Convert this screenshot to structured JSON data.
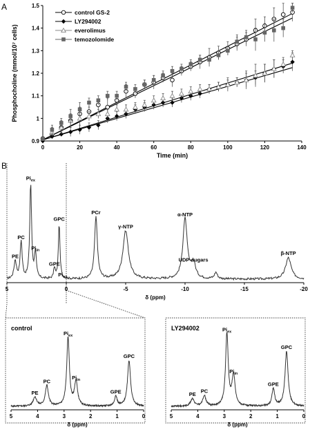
{
  "chart_data": [
    {
      "panel": "A",
      "type": "scatter",
      "xlabel": "Time (min)",
      "ylabel": "Phosphocholine (mmol/10⁷ cells)",
      "xlim": [
        0,
        140
      ],
      "ylim": [
        0.9,
        1.5
      ],
      "xticks": [
        0,
        20,
        40,
        60,
        80,
        100,
        120,
        140
      ],
      "yticks": [
        0.9,
        1.0,
        1.1,
        1.2,
        1.3,
        1.4,
        1.5
      ],
      "legend": "top-left",
      "series": [
        {
          "name": "control GS-2",
          "marker": "open-circle",
          "color": "#000000",
          "x": [
            0,
            5,
            10,
            15,
            20,
            25,
            30,
            35,
            40,
            45,
            50,
            55,
            60,
            65,
            70,
            75,
            80,
            85,
            90,
            95,
            100,
            105,
            110,
            115,
            120,
            125,
            130,
            135
          ],
          "y": [
            0.91,
            0.93,
            0.96,
            0.99,
            1.02,
            1.03,
            1.06,
            1.05,
            1.08,
            1.12,
            1.11,
            1.15,
            1.16,
            1.18,
            1.17,
            1.21,
            1.23,
            1.25,
            1.27,
            1.29,
            1.31,
            1.33,
            1.35,
            1.39,
            1.41,
            1.44,
            1.46,
            1.47
          ],
          "err": [
            0.01,
            0.02,
            0.01,
            0.03,
            0.03,
            0.02,
            0.02,
            0.04,
            0.02,
            0.03,
            0.02,
            0.02,
            0.03,
            0.02,
            0.03,
            0.02,
            0.02,
            0.03,
            0.04,
            0.03,
            0.03,
            0.03,
            0.03,
            0.05,
            0.04,
            0.05,
            0.05,
            0.04
          ]
        },
        {
          "name": "LY294002",
          "marker": "filled-diamond",
          "color": "#000000",
          "x": [
            0,
            5,
            10,
            15,
            20,
            25,
            30,
            35,
            40,
            45,
            50,
            55,
            60,
            65,
            70,
            75,
            80,
            85,
            90,
            95,
            100,
            105,
            110,
            115,
            120,
            125,
            130,
            135
          ],
          "y": [
            0.9,
            0.92,
            0.93,
            0.94,
            0.95,
            0.96,
            0.97,
            1.0,
            1.01,
            1.02,
            1.04,
            1.05,
            1.06,
            1.07,
            1.07,
            1.09,
            1.1,
            1.11,
            1.13,
            1.14,
            1.15,
            1.16,
            1.17,
            1.18,
            1.2,
            1.22,
            1.23,
            1.25
          ],
          "err": [
            0.01,
            0.01,
            0.01,
            0.02,
            0.02,
            0.02,
            0.02,
            0.02,
            0.02,
            0.02,
            0.02,
            0.02,
            0.02,
            0.02,
            0.02,
            0.02,
            0.02,
            0.02,
            0.02,
            0.02,
            0.03,
            0.02,
            0.03,
            0.03,
            0.04,
            0.04,
            0.03,
            0.04
          ]
        },
        {
          "name": "everolimus",
          "marker": "open-triangle",
          "color": "#888888",
          "x": [
            0,
            5,
            10,
            15,
            20,
            25,
            30,
            35,
            40,
            45,
            50,
            55,
            60,
            65,
            70,
            75,
            80,
            85,
            90,
            95,
            100,
            105,
            110,
            115,
            120,
            125,
            130,
            135
          ],
          "y": [
            0.91,
            0.94,
            0.96,
            0.99,
            1.0,
            1.01,
            1.02,
            1.02,
            1.04,
            1.04,
            1.05,
            1.06,
            1.08,
            1.09,
            1.1,
            1.11,
            1.12,
            1.13,
            1.13,
            1.14,
            1.15,
            1.16,
            1.17,
            1.19,
            1.2,
            1.22,
            1.24,
            1.28
          ],
          "err": [
            0.01,
            0.02,
            0.03,
            0.03,
            0.04,
            0.02,
            0.02,
            0.02,
            0.02,
            0.02,
            0.02,
            0.02,
            0.02,
            0.02,
            0.02,
            0.02,
            0.02,
            0.02,
            0.02,
            0.02,
            0.02,
            0.02,
            0.04,
            0.05,
            0.04,
            0.04,
            0.03,
            0.02
          ]
        },
        {
          "name": "temozolomide",
          "marker": "filled-square",
          "color": "#666666",
          "x": [
            0,
            5,
            10,
            15,
            20,
            25,
            30,
            35,
            40,
            45,
            50,
            55,
            60,
            65,
            70,
            75,
            80,
            85,
            90,
            95,
            100,
            105,
            110,
            115,
            120,
            125,
            130,
            135
          ],
          "y": [
            0.91,
            0.95,
            0.98,
            1.01,
            1.04,
            1.07,
            1.08,
            1.1,
            1.1,
            1.14,
            1.13,
            1.15,
            1.17,
            1.19,
            1.21,
            1.22,
            1.24,
            1.26,
            1.26,
            1.28,
            1.3,
            1.34,
            1.36,
            1.35,
            1.38,
            1.39,
            1.4,
            1.49
          ],
          "err": [
            0.01,
            0.02,
            0.02,
            0.03,
            0.03,
            0.02,
            0.02,
            0.02,
            0.02,
            0.02,
            0.02,
            0.02,
            0.02,
            0.02,
            0.02,
            0.02,
            0.02,
            0.02,
            0.02,
            0.02,
            0.02,
            0.03,
            0.03,
            0.05,
            0.04,
            0.05,
            0.04,
            0.02
          ]
        }
      ],
      "fits": [
        {
          "x": [
            0,
            135
          ],
          "y": [
            0.905,
            1.465
          ]
        },
        {
          "x": [
            0,
            135
          ],
          "y": [
            0.905,
            1.225
          ]
        },
        {
          "x": [
            0,
            135
          ],
          "y": [
            0.905,
            1.245
          ]
        },
        {
          "x": [
            0,
            135
          ],
          "y": [
            0.905,
            1.445
          ]
        }
      ]
    },
    {
      "panel": "B",
      "type": "line",
      "xlabel": "δ (ppm)",
      "xlim": [
        5,
        -20
      ],
      "xticks": [
        5,
        0,
        -5,
        -10,
        -15,
        -20
      ],
      "peaks": [
        {
          "label": "PE",
          "sub": "",
          "ppm": 4.3,
          "height": 0.17,
          "width": 0.12
        },
        {
          "label": "PC",
          "sub": "",
          "ppm": 3.8,
          "height": 0.35,
          "width": 0.1
        },
        {
          "label": "Pi",
          "sub": "ex",
          "ppm": 3.0,
          "height": 0.9,
          "width": 0.09
        },
        {
          "label": "Pi",
          "sub": "in",
          "ppm": 2.6,
          "height": 0.25,
          "width": 0.09
        },
        {
          "label": "GPE",
          "sub": "",
          "ppm": 1.0,
          "height": 0.1,
          "width": 0.08
        },
        {
          "label": "GPC",
          "sub": "",
          "ppm": 0.6,
          "height": 0.52,
          "width": 0.08
        },
        {
          "label": "Pi",
          "sub": "ex",
          "ppm": 0.3,
          "height": 0.0,
          "width": 0.08
        },
        {
          "label": "PCr",
          "sub": "",
          "ppm": -2.5,
          "height": 0.58,
          "width": 0.14
        },
        {
          "label": "γ-NTP",
          "sub": "",
          "ppm": -5.0,
          "height": 0.45,
          "width": 0.28
        },
        {
          "label": "α-NTP",
          "sub": "",
          "ppm": -10.0,
          "height": 0.56,
          "width": 0.22
        },
        {
          "label": "UDP-sugars",
          "sub": "",
          "ppm": -10.7,
          "height": 0.14,
          "width": 0.22
        },
        {
          "label": "",
          "sub": "",
          "ppm": -12.6,
          "height": 0.06,
          "width": 0.15
        },
        {
          "label": "β-NTP",
          "sub": "",
          "ppm": -18.7,
          "height": 0.2,
          "width": 0.28
        }
      ]
    },
    {
      "panel": "B-control",
      "type": "line",
      "title": "control",
      "xlabel": "δ (ppm)",
      "xlim": [
        5,
        0
      ],
      "xticks": [
        5,
        4,
        3,
        2,
        1,
        0
      ],
      "peaks": [
        {
          "label": "PE",
          "sub": "",
          "ppm": 4.1,
          "height": 0.12,
          "width": 0.08
        },
        {
          "label": "PC",
          "sub": "",
          "ppm": 3.65,
          "height": 0.27,
          "width": 0.07
        },
        {
          "label": "Pi",
          "sub": "ex",
          "ppm": 2.85,
          "height": 0.9,
          "width": 0.06
        },
        {
          "label": "Pi",
          "sub": "in",
          "ppm": 2.55,
          "height": 0.32,
          "width": 0.07
        },
        {
          "label": "GPE",
          "sub": "",
          "ppm": 1.05,
          "height": 0.13,
          "width": 0.06
        },
        {
          "label": "GPC",
          "sub": "",
          "ppm": 0.55,
          "height": 0.6,
          "width": 0.07
        }
      ]
    },
    {
      "panel": "B-LY294002",
      "type": "line",
      "title": "LY294002",
      "xlabel": "δ (ppm)",
      "xlim": [
        5,
        0
      ],
      "xticks": [
        5,
        4,
        3,
        2,
        1,
        0
      ],
      "peaks": [
        {
          "label": "PE",
          "sub": "",
          "ppm": 4.2,
          "height": 0.1,
          "width": 0.08
        },
        {
          "label": "PC",
          "sub": "",
          "ppm": 3.75,
          "height": 0.14,
          "width": 0.07
        },
        {
          "label": "Pi",
          "sub": "ex",
          "ppm": 2.9,
          "height": 0.95,
          "width": 0.06
        },
        {
          "label": "Pi",
          "sub": "in",
          "ppm": 2.65,
          "height": 0.4,
          "width": 0.07
        },
        {
          "label": "GPE",
          "sub": "",
          "ppm": 1.15,
          "height": 0.23,
          "width": 0.06
        },
        {
          "label": "GPC",
          "sub": "",
          "ppm": 0.65,
          "height": 0.72,
          "width": 0.07
        }
      ]
    }
  ]
}
